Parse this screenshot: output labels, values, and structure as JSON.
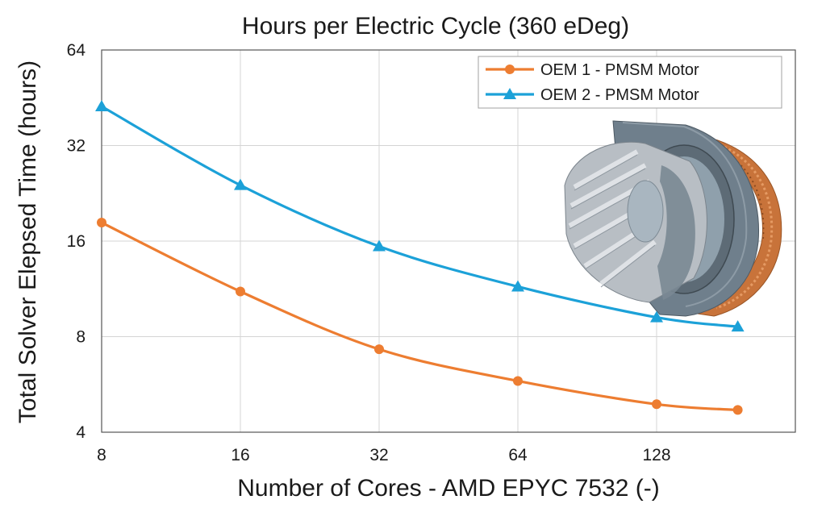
{
  "colors": {
    "oem1": "#ED7D31",
    "oem2": "#1CA1D8",
    "grid": "#D4D4D4",
    "background": "#FFFFFF"
  },
  "chart_data": {
    "type": "line",
    "title": "Hours per Electric Cycle (360 eDeg)",
    "xlabel": "Number of Cores - AMD EPYC 7532 (-)",
    "ylabel": "Total Solver Elepsed Time (hours)",
    "xscale": "log2",
    "yscale": "log2",
    "xlim": [
      8,
      256
    ],
    "ylim": [
      4,
      64
    ],
    "xticks": [
      8,
      16,
      32,
      64,
      128
    ],
    "xtick_labels": [
      "8",
      "16",
      "32",
      "64",
      "128"
    ],
    "yticks": [
      4,
      8,
      16,
      32,
      64
    ],
    "ytick_labels": [
      "4",
      "8",
      "16",
      "32",
      "64"
    ],
    "grid": true,
    "legend_position": "top-right",
    "series": [
      {
        "name": "OEM 1 - PMSM Motor",
        "marker": "circle",
        "color": "#ED7D31",
        "x": [
          8,
          16,
          32,
          64,
          128,
          192
        ],
        "y": [
          18.3,
          11.1,
          7.3,
          5.8,
          4.9,
          4.7
        ]
      },
      {
        "name": "OEM 2 - PMSM Motor",
        "marker": "triangle",
        "color": "#1CA1D8",
        "x": [
          8,
          16,
          32,
          64,
          128,
          192
        ],
        "y": [
          42.5,
          24.0,
          15.4,
          11.5,
          9.2,
          8.6
        ]
      }
    ]
  }
}
